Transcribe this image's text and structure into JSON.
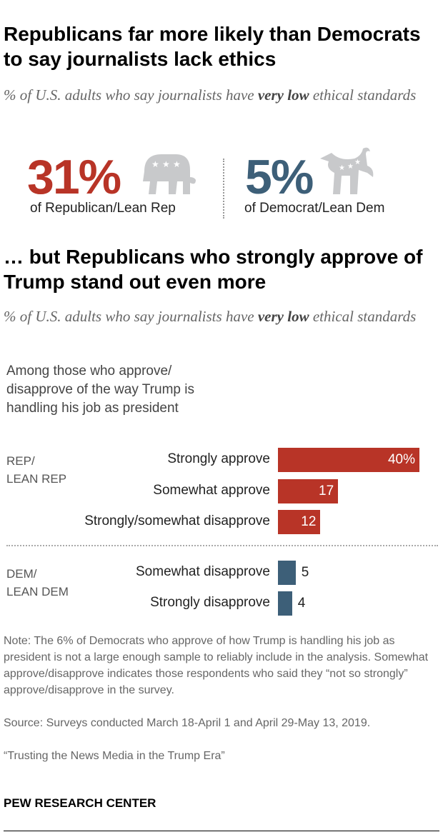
{
  "title1": "Republicans far more likely than Democrats to say journalists lack ethics",
  "subtitle1_pre": "% of U.S. adults who say journalists have ",
  "subtitle1_bold": "very low",
  "subtitle1_post": " ethical standards",
  "rep_stat": {
    "value": "31%",
    "label": "of Republican/Lean Rep",
    "icon": "elephant-icon"
  },
  "dem_stat": {
    "value": "5%",
    "label": "of Democrat/Lean Dem",
    "icon": "donkey-icon"
  },
  "title2": "… but Republicans who strongly approve of Trump stand out even more",
  "subtitle2_pre": "% of U.S. adults who say journalists have ",
  "subtitle2_bold": "very low",
  "subtitle2_post": " ethical standards",
  "colors": {
    "rep": "#b83427",
    "dem": "#3d5f78",
    "icon": "#c8c9cb"
  },
  "chart_data": {
    "type": "bar",
    "orientation": "horizontal",
    "intro": "Among those who approve/ disapprove of the way Trump is handling his job as president",
    "groups": [
      {
        "name": "REP/ LEAN REP",
        "line1": "REP/",
        "line2": "LEAN REP",
        "categories": [
          "Strongly approve",
          "Somewhat approve",
          "Strongly/somewhat disapprove"
        ],
        "values": [
          40,
          17,
          12
        ],
        "labels": [
          "40%",
          "17",
          "12"
        ]
      },
      {
        "name": "DEM/ LEAN DEM",
        "line1": "DEM/",
        "line2": "LEAN DEM",
        "categories": [
          "Somewhat disapprove",
          "Strongly disapprove"
        ],
        "values": [
          5,
          4
        ],
        "labels": [
          "5",
          "4"
        ]
      }
    ]
  },
  "note": "Note: The 6% of Democrats who approve of how Trump is handling his job as president is not a large enough sample to reliably include in the analysis. Somewhat approve/disapprove indicates those respondents who said they “not so strongly” approve/disapprove in the survey.",
  "source": "Source: Surveys conducted March 18-April 1 and April 29-May 13, 2019.",
  "report": "“Trusting the News Media in the Trump Era”",
  "brand": "PEW RESEARCH CENTER"
}
